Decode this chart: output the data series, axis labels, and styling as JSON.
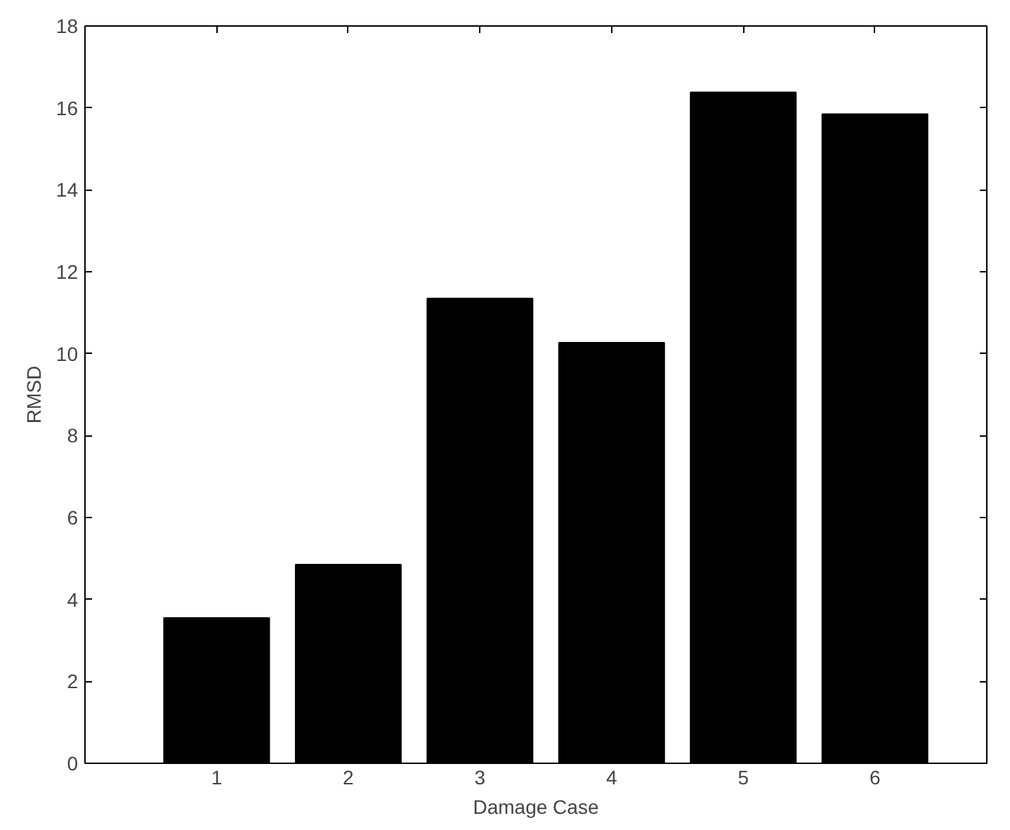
{
  "chart_data": {
    "type": "bar",
    "xlabel": "Damage Case",
    "ylabel": "RMSD",
    "categories": [
      "1",
      "2",
      "3",
      "4",
      "5",
      "6"
    ],
    "values": [
      3.55,
      4.85,
      11.35,
      10.27,
      16.38,
      15.85
    ],
    "color": "#000000",
    "ylim": [
      0,
      18
    ],
    "yticks": [
      0,
      2,
      4,
      6,
      8,
      10,
      12,
      14,
      16,
      18
    ],
    "grid": false
  }
}
